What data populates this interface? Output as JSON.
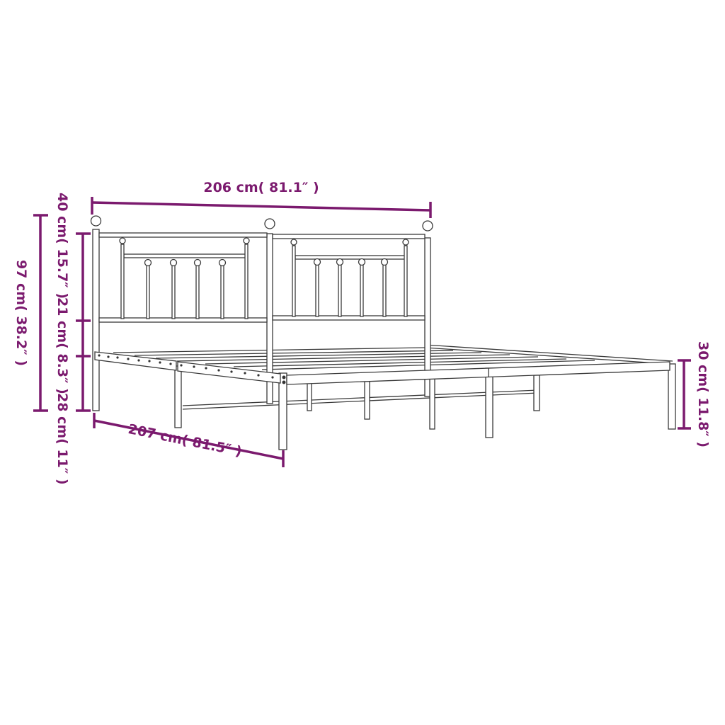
{
  "dimensions": {
    "width": "206 cm( 81.1″ )",
    "length": "207 cm( 81.5″ )",
    "total_height": "97 cm( 38.2″ )",
    "headboard_height": "40 cm( 15.7″ )",
    "headboard_gap": "21 cm( 8.3″ )",
    "frame_height": "28 cm( 11″ )",
    "footend_height": "30 cm( 11.8″ )"
  },
  "colors": {
    "dimension": "#7b1a6e",
    "line_art": "#3a3a3a"
  }
}
